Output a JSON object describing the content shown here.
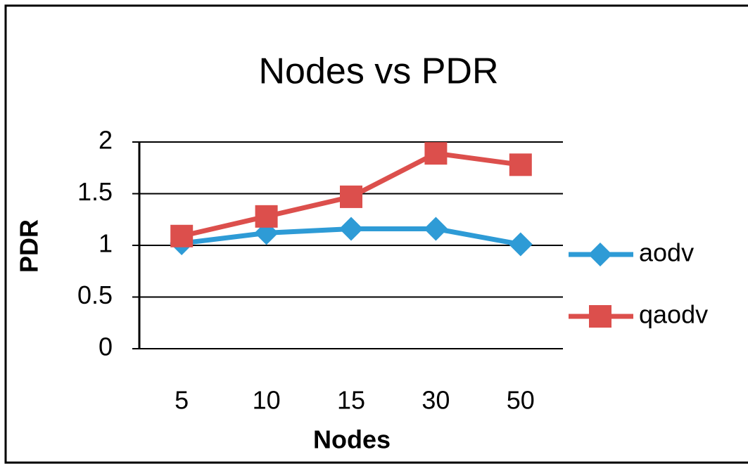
{
  "chart_data": {
    "type": "line",
    "title": "Nodes vs PDR",
    "x_label": "Nodes",
    "y_label": "PDR",
    "categories": [
      "5",
      "10",
      "15",
      "30",
      "50"
    ],
    "series": [
      {
        "name": "aodv",
        "color": "#2e9bd6",
        "marker": "diamond",
        "values": [
          1.02,
          1.12,
          1.16,
          1.16,
          1.01
        ]
      },
      {
        "name": "qaodv",
        "color": "#dc4f4c",
        "marker": "square",
        "values": [
          1.09,
          1.28,
          1.47,
          1.89,
          1.78
        ]
      }
    ],
    "ylim": [
      0,
      2
    ],
    "yticks": [
      0,
      0.5,
      1,
      1.5,
      2
    ],
    "grid": true,
    "legend": "right"
  }
}
